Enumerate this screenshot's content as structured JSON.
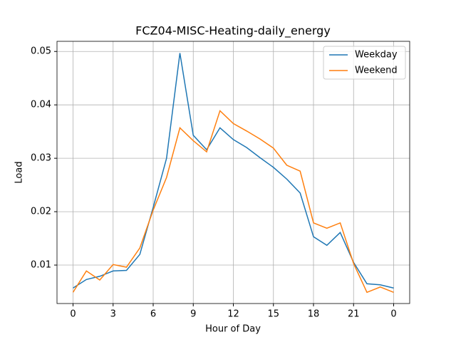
{
  "chart_data": {
    "type": "line",
    "title": "FCZ04-MISC-Heating-daily_energy",
    "x_label": "Hour of Day",
    "y_label": "Load",
    "x": [
      0,
      1,
      2,
      3,
      4,
      5,
      6,
      7,
      8,
      9,
      10,
      11,
      12,
      13,
      14,
      15,
      16,
      17,
      18,
      19,
      20,
      21,
      22,
      23,
      24
    ],
    "series": [
      {
        "name": "Weekday",
        "color": "#1f77b4",
        "values": [
          0.0057,
          0.0073,
          0.0079,
          0.0089,
          0.009,
          0.012,
          0.0208,
          0.03,
          0.0497,
          0.0343,
          0.0316,
          0.0357,
          0.0335,
          0.032,
          0.0301,
          0.0283,
          0.0261,
          0.0235,
          0.0153,
          0.0137,
          0.0161,
          0.0105,
          0.0065,
          0.0063,
          0.0057
        ]
      },
      {
        "name": "Weekend",
        "color": "#ff7f0e",
        "values": [
          0.0049,
          0.0089,
          0.0072,
          0.0101,
          0.0096,
          0.0132,
          0.0203,
          0.0264,
          0.0357,
          0.0333,
          0.0312,
          0.0389,
          0.0365,
          0.0351,
          0.0336,
          0.0319,
          0.0287,
          0.0276,
          0.0179,
          0.0169,
          0.0179,
          0.0103,
          0.0049,
          0.0059,
          0.0049
        ]
      }
    ],
    "xlim": [
      -1.2,
      25.2
    ],
    "ylim": [
      0.0028,
      0.0519
    ],
    "xticks": [
      0,
      3,
      6,
      9,
      12,
      15,
      18,
      21,
      {
        "value": 24,
        "label": "0"
      }
    ],
    "yticks": [
      0.01,
      0.02,
      0.03,
      0.04,
      0.05
    ],
    "grid": true,
    "legend": "upper right"
  }
}
